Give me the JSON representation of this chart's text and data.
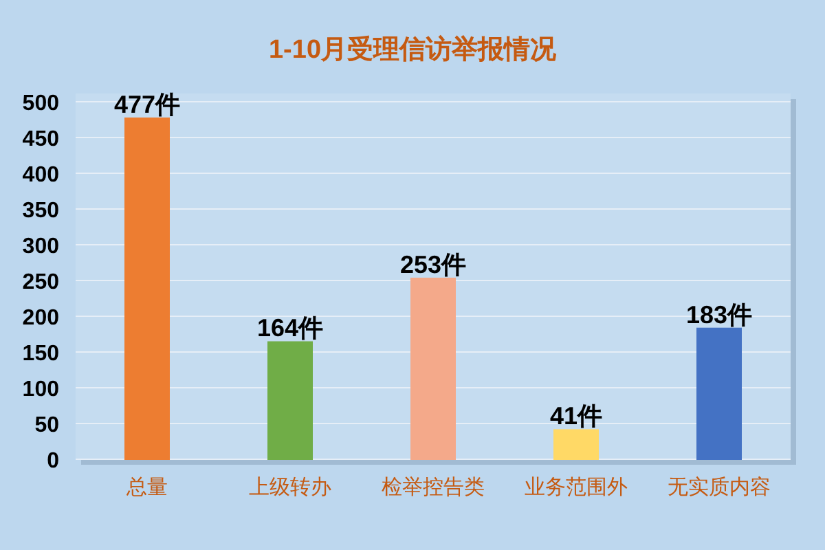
{
  "chart_data": {
    "type": "bar",
    "title": "1-10月受理信访举报情况",
    "categories": [
      "总量",
      "上级转办",
      "检举控告类",
      "业务范围外",
      "无实质内容"
    ],
    "values": [
      477,
      164,
      253,
      41,
      183
    ],
    "colors": [
      "#ed7d31",
      "#70ad47",
      "#f4a98a",
      "#ffd966",
      "#4472c4"
    ],
    "value_labels": [
      "477件",
      "164件",
      "253件",
      "41件",
      "183件"
    ],
    "ylim": [
      0,
      500
    ],
    "yticks": [
      0,
      50,
      100,
      150,
      200,
      250,
      300,
      350,
      400,
      450,
      500
    ],
    "grid": "y"
  }
}
